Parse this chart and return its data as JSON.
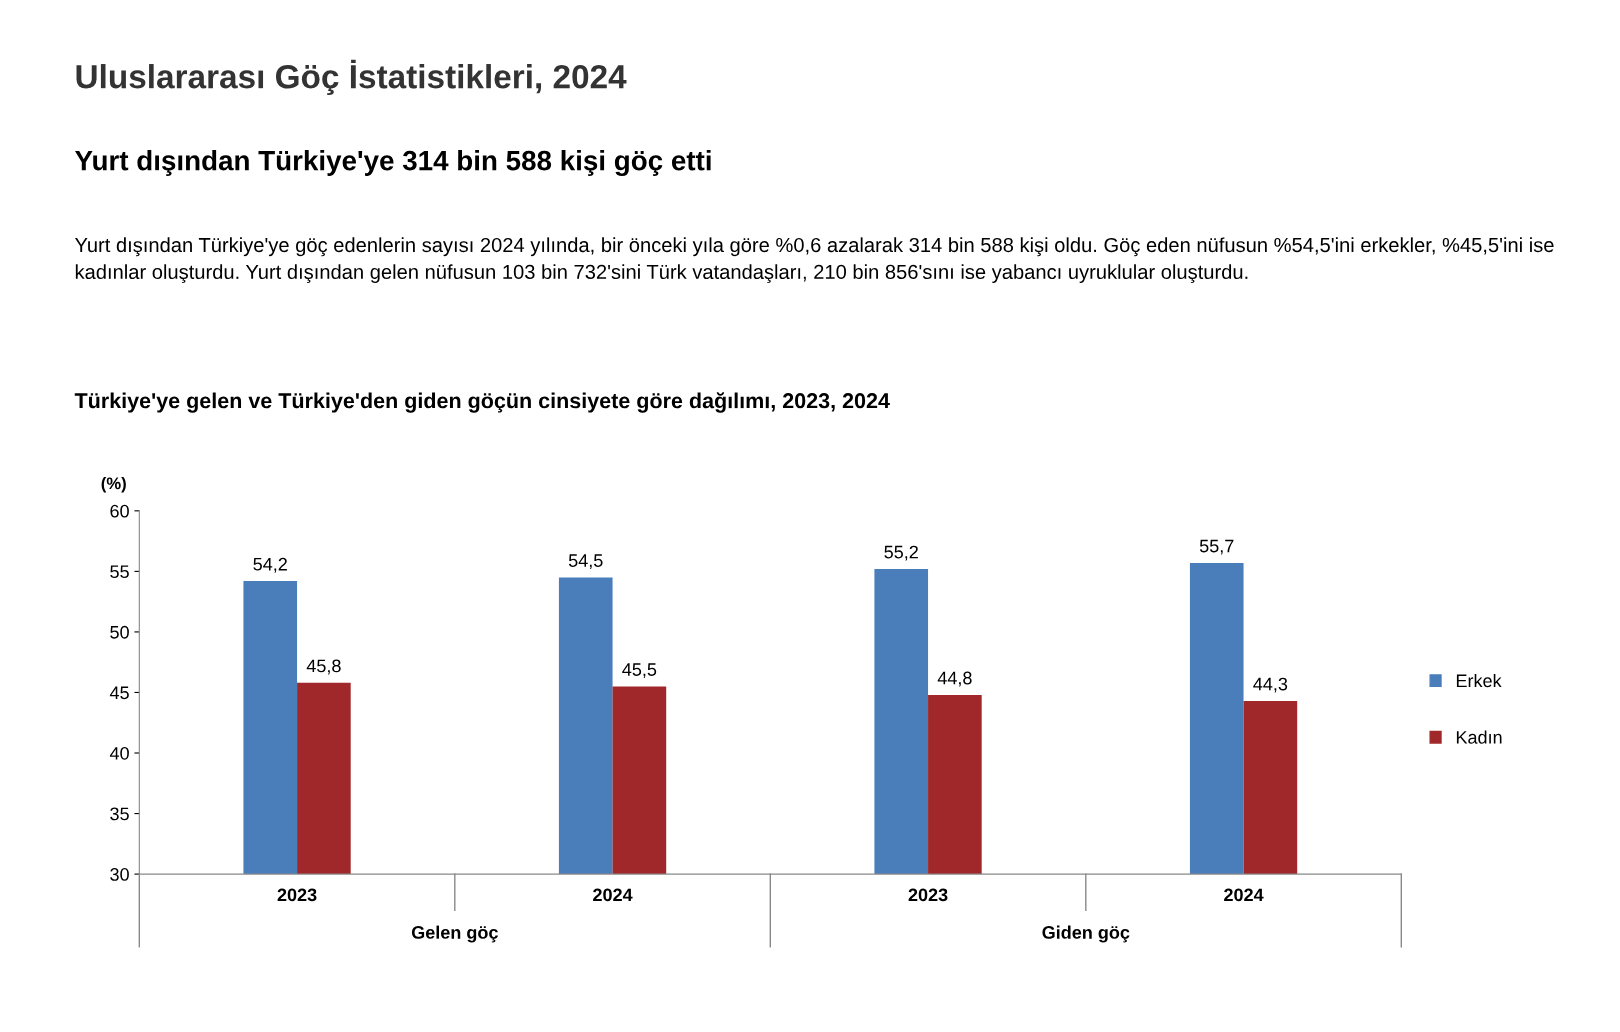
{
  "chart_data": {
    "type": "bar",
    "title": "Uluslararası Göç İstatistikleri, 2024",
    "subtitle": "Yurt dışından Türkiye'ye 314 bin 588 kişi göç etti",
    "annotations": [
      "Yurt dışından Türkiye'ye göç edenlerin sayısı 2024 yılında, bir önceki yıla göre %0,6 azalarak 314 bin 588 kişi oldu. Göç eden nüfusun %54,5'ini erkekler, %45,5'ini ise kadınlar oluşturdu. Yurt dışından gelen nüfusun 103 bin 732'sini Türk vatandaşları, 210 bin 856'sını ise yabancı uyruklular oluşturdu.",
      "Türkiye'ye gelen ve Türkiye'den giden göçün cinsiyete göre dağılımı, 2023, 2024",
      "Gelen göç",
      "Giden göç"
    ],
    "ylabel": "(%)",
    "categories": [
      "2023",
      "2024",
      "2023",
      "2024"
    ],
    "series": [
      {
        "name": "Erkek",
        "color": "#4a7ebb",
        "values": [
          54.2,
          54.5,
          55.2,
          55.7
        ]
      },
      {
        "name": "Kadın",
        "color": "#a0282a",
        "values": [
          45.8,
          45.5,
          44.8,
          44.3
        ]
      }
    ],
    "value_labels": [
      [
        "54,2",
        "54,5",
        "55,2",
        "55,7"
      ],
      [
        "45,8",
        "45,5",
        "44,8",
        "44,3"
      ]
    ],
    "ylim": [
      30,
      60
    ],
    "yticks": [
      30,
      35,
      40,
      45,
      50,
      55,
      60
    ],
    "grid": false,
    "legend": "right"
  }
}
